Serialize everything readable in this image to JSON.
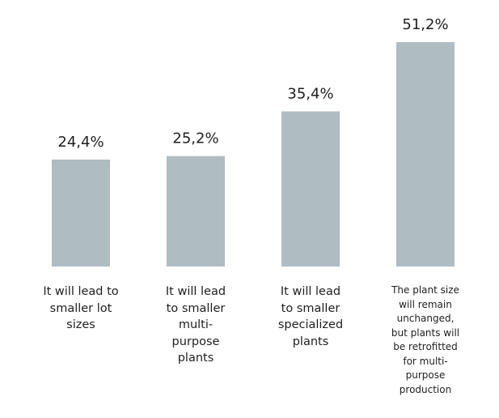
{
  "chart_data": {
    "type": "bar",
    "title": "",
    "xlabel": "",
    "ylabel": "",
    "ylim": [
      0,
      51.2
    ],
    "grid": false,
    "legend": "none",
    "colors": {
      "bar": "#afbcc2",
      "text": "#1f1f1f"
    },
    "categories": [
      "It will lead to\nsmaller lot\nsizes",
      "It will lead\nto smaller\nmulti-\npurpose\nplants",
      "It will lead\nto smaller\nspecialized\nplants",
      "The plant size\nwill remain\nunchanged,\nbut plants will\nbe retrofitted\nfor multi-\npurpose\nproduction"
    ],
    "values": [
      24.4,
      25.2,
      35.4,
      51.2
    ],
    "value_labels": [
      "24,4%",
      "25,2%",
      "35,4%",
      "51,2%"
    ]
  }
}
